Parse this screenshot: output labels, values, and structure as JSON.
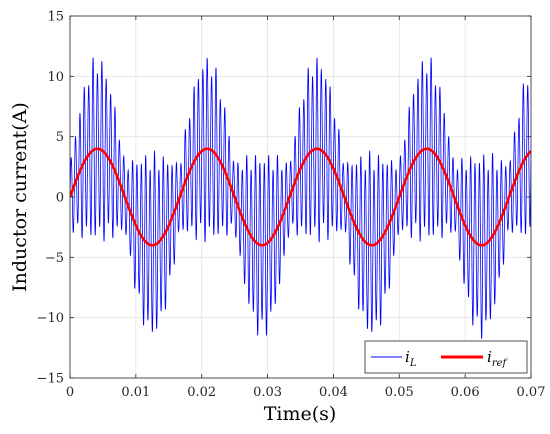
{
  "chart_data": {
    "type": "line",
    "xlabel": "Time(s)",
    "ylabel": "Inductor current(A)",
    "xlim": [
      0,
      0.07
    ],
    "ylim": [
      -15,
      15
    ],
    "xticks": [
      "0",
      "0.01",
      "0.02",
      "0.03",
      "0.04",
      "0.05",
      "0.06",
      "0.07"
    ],
    "yticks": [
      "15",
      "10",
      "5",
      "0",
      "−5",
      "−10",
      "−15"
    ],
    "grid": true,
    "legend_position": "bottom-right",
    "series": [
      {
        "name": "i",
        "name_subscript": "L",
        "color": "#0000ff",
        "fundamental_hz": 60,
        "amplitude": 4,
        "ripple_hz": 1500,
        "ripple_amplitude_peak": 7,
        "ripple_amplitude_zero": 2.5,
        "description": "sinusoid with high-frequency switching ripple, peaks near ±11.5"
      },
      {
        "name": "i",
        "name_subscript": "ref",
        "color": "#ff0000",
        "fundamental_hz": 60,
        "amplitude": 4,
        "peaks": [
          {
            "x": 0.0042,
            "y": 4
          },
          {
            "x": 0.0125,
            "y": -4
          },
          {
            "x": 0.0208,
            "y": 4
          },
          {
            "x": 0.0292,
            "y": -4
          },
          {
            "x": 0.0375,
            "y": 4
          },
          {
            "x": 0.0458,
            "y": -4
          },
          {
            "x": 0.0542,
            "y": 4
          },
          {
            "x": 0.0625,
            "y": -4
          }
        ]
      }
    ]
  }
}
